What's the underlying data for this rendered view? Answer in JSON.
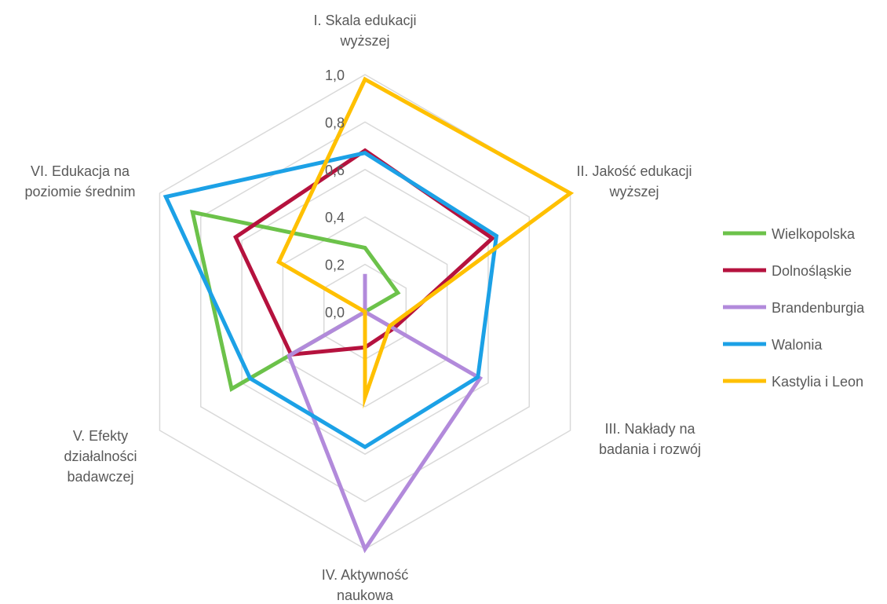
{
  "chart_data": {
    "type": "radar",
    "axes": [
      [
        "I. Skala edukacji",
        "wyższej"
      ],
      [
        "II. Jakość edukacji",
        "wyższej"
      ],
      [
        "III. Nakłady na",
        "badania i rozwój"
      ],
      [
        "IV. Aktywność",
        "naukowa"
      ],
      [
        "V. Efekty",
        "działalności",
        "badawczej"
      ],
      [
        "VI. Edukacja na",
        "poziomie średnim"
      ]
    ],
    "ticks": [
      "0,0",
      "0,2",
      "0,4",
      "0,6",
      "0,8",
      "1,0"
    ],
    "rlim": [
      0,
      1
    ],
    "grid": true,
    "legend_position": "right",
    "series": [
      {
        "name": "Wielkopolska",
        "color": "#6CC24A",
        "values": [
          0.27,
          0.16,
          0.0,
          0.0,
          0.65,
          0.84
        ]
      },
      {
        "name": "Dolnośląskie",
        "color": "#B5123E",
        "values": [
          0.68,
          0.62,
          0.14,
          0.15,
          0.36,
          0.63
        ]
      },
      {
        "name": "Brandenburgia",
        "color": "#B28ADB",
        "values": [
          0.16,
          0.0,
          0.56,
          1.0,
          0.37,
          0.0
        ]
      },
      {
        "name": "Walonia",
        "color": "#1CA1E6",
        "values": [
          0.67,
          0.64,
          0.55,
          0.57,
          0.56,
          0.97
        ]
      },
      {
        "name": "Kastylia i Leon",
        "color": "#FFC000",
        "values": [
          0.98,
          1.0,
          0.12,
          0.36,
          0.0,
          0.42
        ]
      }
    ]
  }
}
